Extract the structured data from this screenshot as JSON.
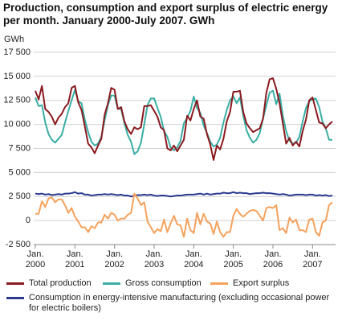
{
  "chart_data": {
    "type": "line",
    "title": "Production, consumption and export surplus of electric energy per month. January 2000-July 2007. GWh",
    "y_label": "GWh",
    "categories": [
      "Jan. 2000",
      null,
      null,
      null,
      null,
      null,
      null,
      null,
      null,
      null,
      null,
      null,
      "Jan. 2001",
      null,
      null,
      null,
      null,
      null,
      null,
      null,
      null,
      null,
      null,
      null,
      "Jan. 2002",
      null,
      null,
      null,
      null,
      null,
      null,
      null,
      null,
      null,
      null,
      null,
      "Jan. 2003",
      null,
      null,
      null,
      null,
      null,
      null,
      null,
      null,
      null,
      null,
      null,
      "Jan. 2004",
      null,
      null,
      null,
      null,
      null,
      null,
      null,
      null,
      null,
      null,
      null,
      "Jan. 2005",
      null,
      null,
      null,
      null,
      null,
      null,
      null,
      null,
      null,
      null,
      null,
      "Jan. 2006",
      null,
      null,
      null,
      null,
      null,
      null,
      null,
      null,
      null,
      null,
      null,
      "Jan. 2007",
      null,
      null,
      null,
      null,
      null,
      null
    ],
    "ylim": [
      -2500,
      17500
    ],
    "yticks": [
      {
        "value": -2500,
        "label": "-2 500"
      },
      0,
      {
        "value": 2500,
        "label": "2 500"
      },
      {
        "value": 5000,
        "label": "5 000"
      },
      {
        "value": 7500,
        "label": "7 500"
      },
      {
        "value": 10000,
        "label": "10 000"
      },
      {
        "value": 12500,
        "label": "12 500"
      },
      {
        "value": 15000,
        "label": "15 000"
      },
      {
        "value": 17500,
        "label": "17 500"
      }
    ],
    "grid": true,
    "legend": "bottom",
    "series": [
      {
        "name": "Total production",
        "color": "#8b1a1f",
        "values": [
          13500,
          12600,
          14000,
          11600,
          11300,
          10800,
          10000,
          10700,
          11100,
          11800,
          12200,
          13800,
          14000,
          12300,
          11500,
          9800,
          8000,
          7600,
          7000,
          7800,
          8500,
          11000,
          12200,
          13800,
          13600,
          11600,
          11800,
          10300,
          9500,
          9000,
          9700,
          9500,
          9700,
          11900,
          11900,
          12000,
          11400,
          10800,
          9700,
          9400,
          7500,
          7300,
          7800,
          7200,
          7800,
          8400,
          10900,
          10400,
          11600,
          12500,
          10800,
          10600,
          9000,
          7900,
          6300,
          7800,
          7400,
          8500,
          10300,
          11300,
          13400,
          13400,
          13500,
          11300,
          10100,
          9600,
          9200,
          9400,
          9600,
          10600,
          13300,
          14700,
          14800,
          13700,
          12200,
          10100,
          8000,
          8600,
          7800,
          8200,
          7700,
          9300,
          10500,
          12500,
          12800,
          11500,
          10200,
          10100,
          9600,
          10000,
          10300
        ]
      },
      {
        "name": "Gross consumption",
        "color": "#3aaea5",
        "values": [
          12800,
          11900,
          12000,
          10200,
          9000,
          8400,
          8100,
          8500,
          8900,
          10200,
          11400,
          12500,
          13600,
          12400,
          12200,
          10500,
          9200,
          8200,
          7800,
          8000,
          8700,
          10400,
          12000,
          13000,
          13000,
          11600,
          11600,
          10100,
          8900,
          8200,
          6900,
          7200,
          8100,
          10000,
          12000,
          12700,
          12700,
          11700,
          10800,
          9300,
          8700,
          7600,
          7300,
          7600,
          8300,
          10100,
          10700,
          11400,
          12900,
          11700,
          11200,
          9900,
          9100,
          8200,
          7700,
          7900,
          8600,
          10200,
          11500,
          12500,
          12900,
          12200,
          12800,
          10900,
          9400,
          8600,
          8100,
          8400,
          9100,
          10600,
          12000,
          13300,
          13500,
          12100,
          13200,
          10900,
          9300,
          8300,
          8000,
          8100,
          8700,
          10300,
          11700,
          12400,
          12600,
          12700,
          11800,
          10300,
          9600,
          8400,
          8400
        ]
      },
      {
        "name": "Export surplus",
        "color": "#f5a25c",
        "values": [
          700,
          700,
          2000,
          1400,
          2300,
          2400,
          1900,
          2200,
          2200,
          1600,
          800,
          1300,
          400,
          -100,
          -700,
          -700,
          -1200,
          -600,
          -800,
          -200,
          -200,
          600,
          200,
          800,
          600,
          0,
          200,
          200,
          600,
          800,
          2800,
          2300,
          1600,
          1900,
          -100,
          -700,
          -1300,
          -900,
          -1100,
          100,
          -1200,
          -300,
          500,
          -400,
          -500,
          -1700,
          200,
          -1000,
          -1300,
          800,
          -400,
          700,
          -100,
          -300,
          -1400,
          -100,
          -1200,
          -1700,
          -1200,
          -1200,
          500,
          1200,
          700,
          400,
          700,
          1000,
          1100,
          1000,
          500,
          0,
          1300,
          1400,
          1300,
          1600,
          -1000,
          -800,
          -1300,
          300,
          -200,
          100,
          -1000,
          -1000,
          -1200,
          100,
          200,
          -1200,
          -1600,
          -200,
          0,
          1600,
          1900
        ]
      },
      {
        "name": "Consumption in energy-intensive manufacturing (excluding occasional power for electric boilers)",
        "color": "#2b3a8f",
        "values": [
          2800,
          2750,
          2800,
          2700,
          2750,
          2650,
          2700,
          2750,
          2700,
          2800,
          2800,
          2850,
          2950,
          2800,
          2850,
          2700,
          2700,
          2600,
          2650,
          2700,
          2700,
          2750,
          2700,
          2750,
          2700,
          2650,
          2700,
          2600,
          2600,
          2500,
          2600,
          2650,
          2650,
          2700,
          2650,
          2700,
          2600,
          2550,
          2600,
          2600,
          2550,
          2500,
          2550,
          2600,
          2600,
          2650,
          2700,
          2700,
          2700,
          2750,
          2800,
          2700,
          2800,
          2700,
          2750,
          2800,
          2800,
          2900,
          2850,
          2850,
          2950,
          2850,
          2900,
          2850,
          2850,
          2750,
          2800,
          2850,
          2850,
          2900,
          2850,
          2850,
          2800,
          2750,
          2700,
          2750,
          2700,
          2600,
          2650,
          2700,
          2700,
          2700,
          2650,
          2700,
          2700,
          2600,
          2650,
          2600,
          2650,
          2550,
          2600
        ]
      }
    ]
  }
}
